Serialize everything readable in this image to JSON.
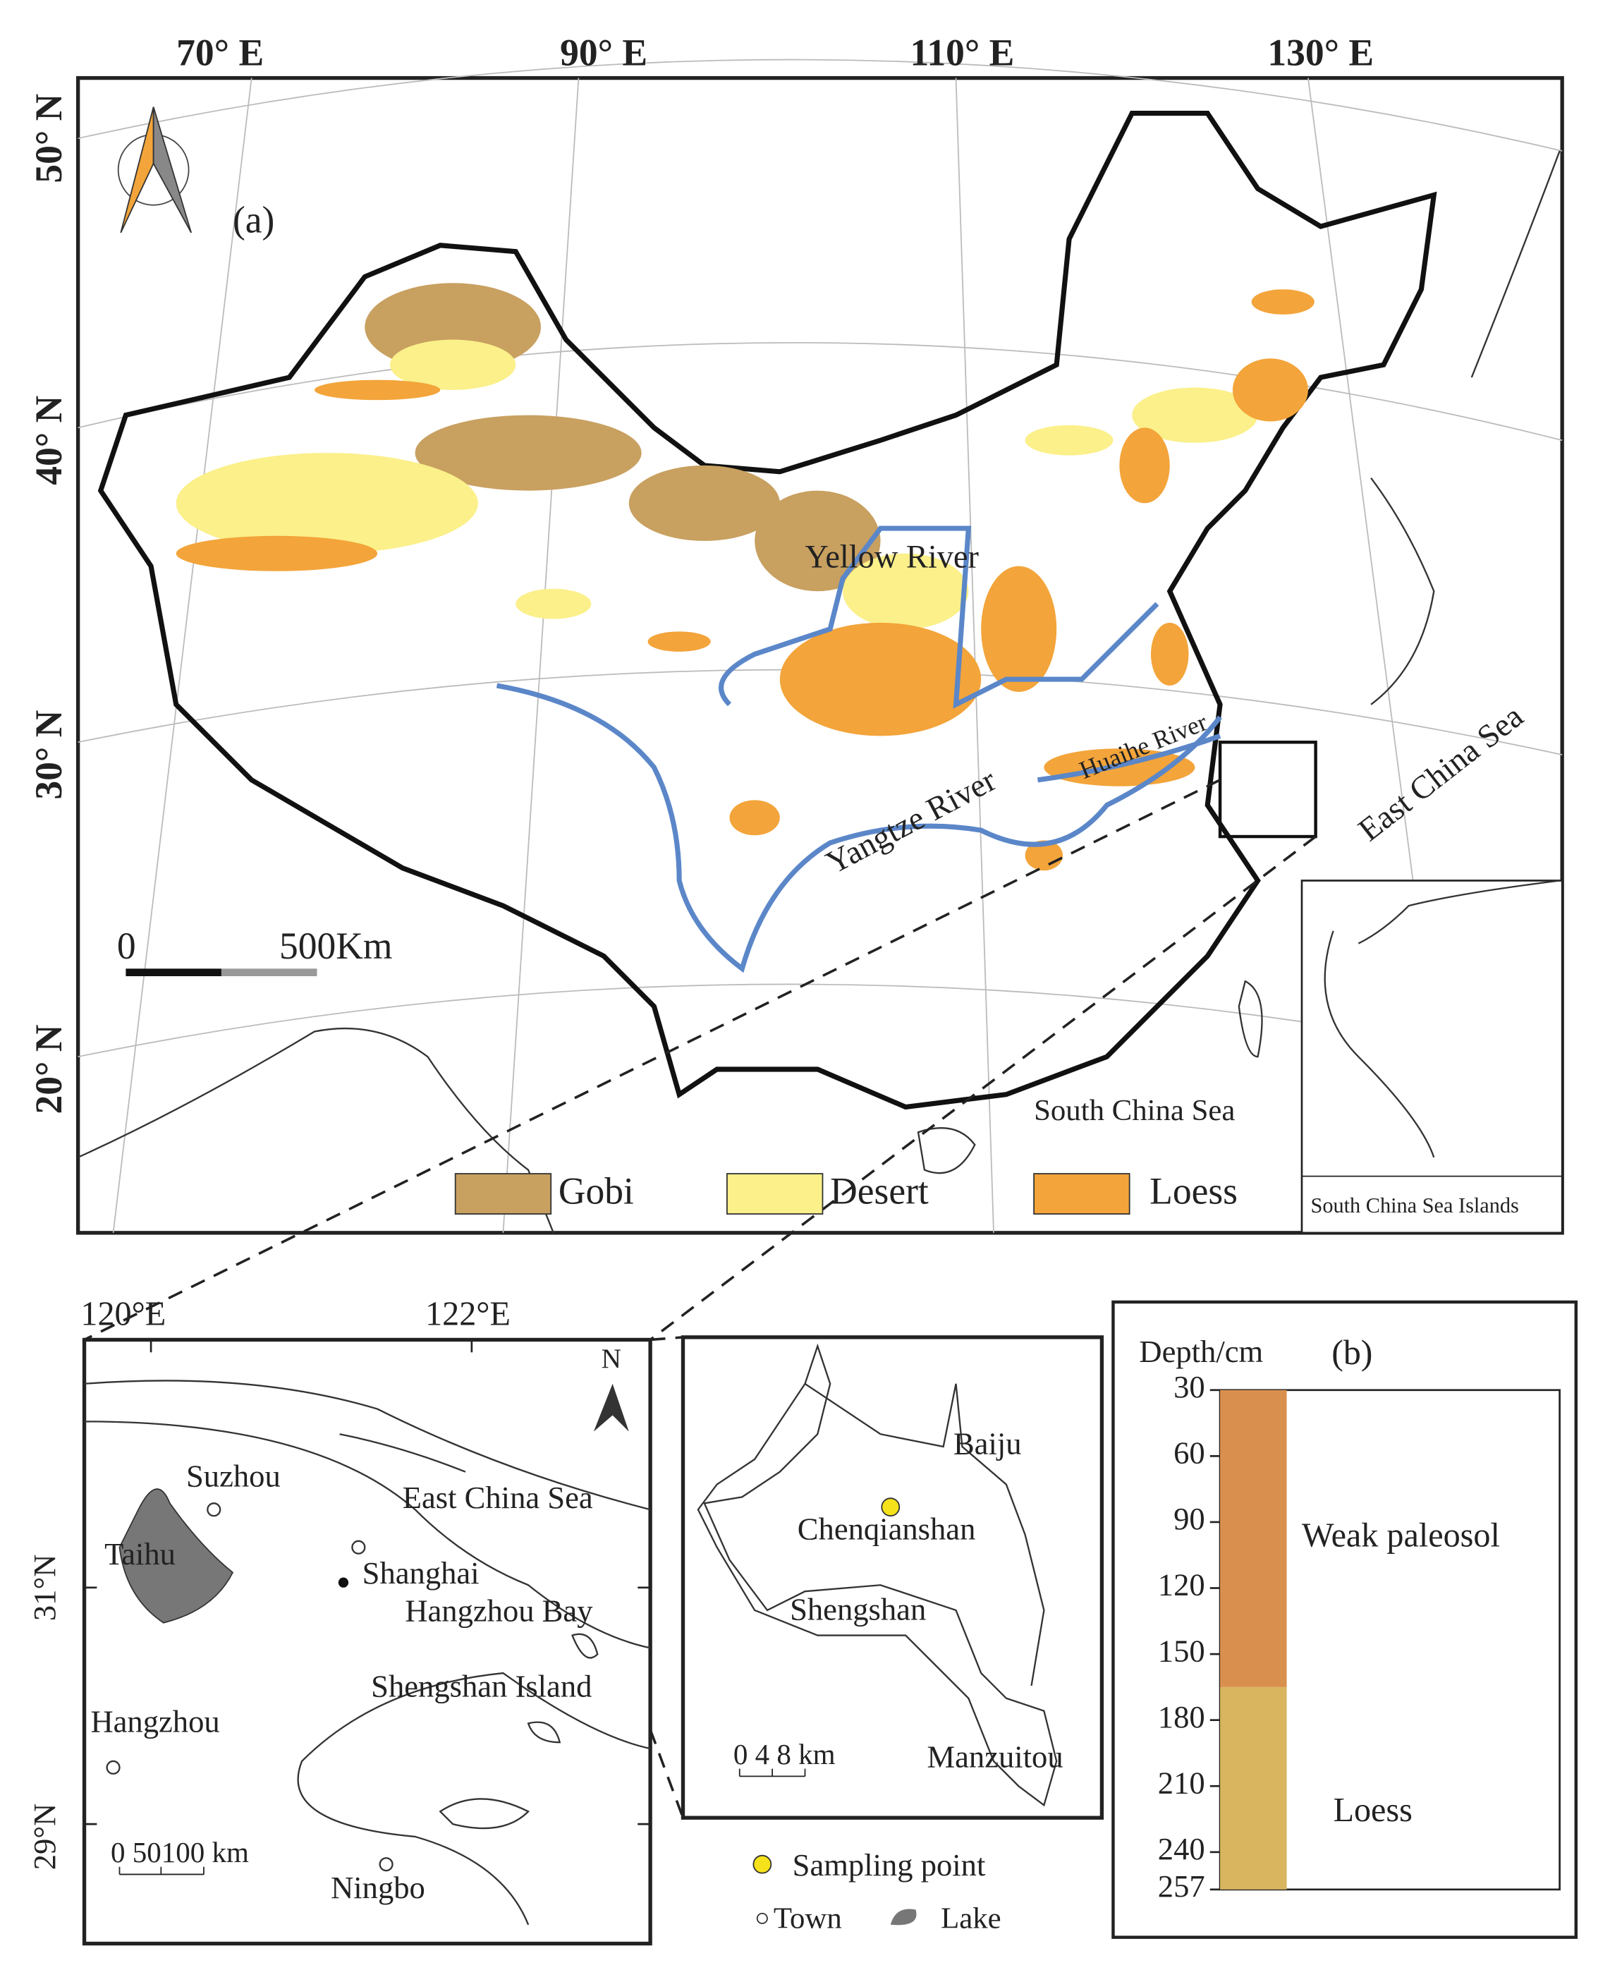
{
  "panel_a": {
    "label": "(a)",
    "lon_labels": [
      "70° E",
      "90° E",
      "110° E",
      "130° E"
    ],
    "lat_labels": [
      "50° N",
      "40° N",
      "30° N",
      "20° N"
    ],
    "places": [
      "Yellow River",
      "Yangtze River",
      "Huaihe River",
      "East China Sea",
      "South China Sea",
      "South China Sea Islands"
    ],
    "scale_bar": [
      "0",
      "500Km"
    ],
    "legend": [
      {
        "name": "Gobi",
        "color": "#c8a060"
      },
      {
        "name": "Desert",
        "color": "#fbf08a"
      },
      {
        "name": "Loess",
        "color": "#f3a43a"
      }
    ]
  },
  "inset_regional": {
    "lon_labels": [
      "120°E",
      "122°E"
    ],
    "lat_labels": [
      "31°N",
      "29°N"
    ],
    "north": "N",
    "places": [
      "Suzhou",
      "Taihu",
      "Shanghai",
      "East China Sea",
      "Hangzhou Bay",
      "Shengshan Island",
      "Hangzhou",
      "Ningbo"
    ],
    "scale_bar": "0  50100  km"
  },
  "inset_island": {
    "places": [
      "Baiju",
      "Chenqianshan",
      "Shengshan",
      "Manzuitou"
    ],
    "scale_bar": "0  4  8 km"
  },
  "legend_bottom": [
    "Sampling point",
    "Town",
    "Lake"
  ],
  "panel_b": {
    "label": "(b)",
    "axis_title": "Depth/cm",
    "ylim": [
      30,
      257
    ],
    "yticks": [
      30,
      60,
      90,
      120,
      150,
      180,
      210,
      240,
      257
    ],
    "layers": [
      {
        "name": "Weak paleosol",
        "top": 30,
        "bottom": 165,
        "color": "#d9904f"
      },
      {
        "name": "Loess",
        "top": 165,
        "bottom": 257,
        "color": "#d9b560"
      }
    ]
  }
}
